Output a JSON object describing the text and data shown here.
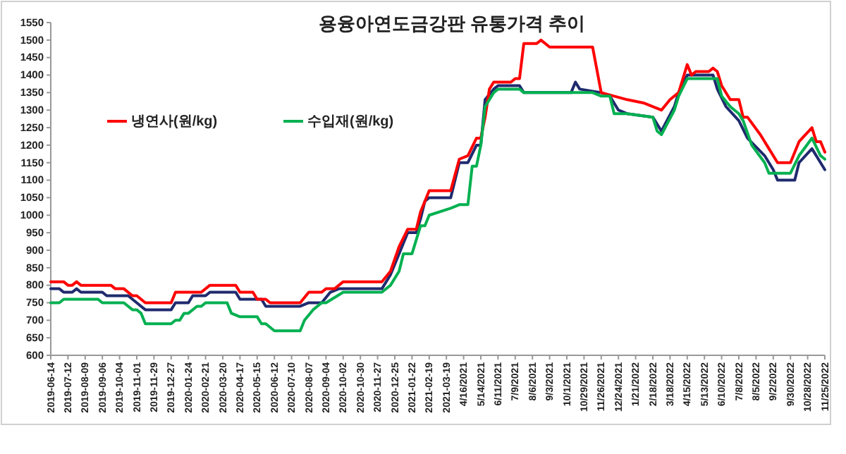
{
  "chart_data": {
    "type": "line",
    "title": "용융아연도금강판 유통가격 추이",
    "legend": "top left",
    "grid": false,
    "marker": "none",
    "line_style": "solid",
    "ylim": [
      600,
      1550
    ],
    "yticks": [
      600,
      650,
      700,
      750,
      800,
      850,
      900,
      950,
      1000,
      1050,
      1100,
      1150,
      1200,
      1250,
      1300,
      1350,
      1400,
      1450,
      1500,
      1550
    ],
    "xlim": [
      "2019-06-14",
      "2022-11-25"
    ],
    "xticks": [
      {
        "value": "2019-06-14",
        "label": "2019-06-14"
      },
      {
        "value": "2019-07-12",
        "label": "2019-07-12"
      },
      {
        "value": "2019-08-09",
        "label": "2019-08-09"
      },
      {
        "value": "2019-09-06",
        "label": "2019-09-06"
      },
      {
        "value": "2019-10-04",
        "label": "2019-10-04"
      },
      {
        "value": "2019-11-01",
        "label": "2019-11-01"
      },
      {
        "value": "2019-11-29",
        "label": "2019-11-29"
      },
      {
        "value": "2019-12-27",
        "label": "2019-12-27"
      },
      {
        "value": "2020-01-24",
        "label": "2020-01-24"
      },
      {
        "value": "2020-02-21",
        "label": "2020-02-21"
      },
      {
        "value": "2020-03-20",
        "label": "2020-03-20"
      },
      {
        "value": "2020-04-17",
        "label": "2020-04-17"
      },
      {
        "value": "2020-05-15",
        "label": "2020-05-15"
      },
      {
        "value": "2020-06-12",
        "label": "2020-06-12"
      },
      {
        "value": "2020-07-10",
        "label": "2020-07-10"
      },
      {
        "value": "2020-08-07",
        "label": "2020-08-07"
      },
      {
        "value": "2020-09-04",
        "label": "2020-09-04"
      },
      {
        "value": "2020-10-02",
        "label": "2020-10-02"
      },
      {
        "value": "2020-10-30",
        "label": "2020-10-30"
      },
      {
        "value": "2020-11-27",
        "label": "2020-11-27"
      },
      {
        "value": "2020-12-25",
        "label": "2020-12-25"
      },
      {
        "value": "2021-01-22",
        "label": "2021-01-22"
      },
      {
        "value": "2021-02-19",
        "label": "2021-02-19"
      },
      {
        "value": "2021-03-19",
        "label": "2021-03-19"
      },
      {
        "value": "2021-04-16",
        "label": "4/16/2021"
      },
      {
        "value": "2021-05-14",
        "label": "5/14/2021"
      },
      {
        "value": "2021-06-11",
        "label": "6/11/2021"
      },
      {
        "value": "2021-07-09",
        "label": "7/9/2021"
      },
      {
        "value": "2021-08-06",
        "label": "8/6/2021"
      },
      {
        "value": "2021-09-03",
        "label": "9/3/2021"
      },
      {
        "value": "2021-10-01",
        "label": "10/1/2021"
      },
      {
        "value": "2021-10-29",
        "label": "10/29/2021"
      },
      {
        "value": "2021-11-26",
        "label": "11/26/2021"
      },
      {
        "value": "2021-12-24",
        "label": "12/24/2021"
      },
      {
        "value": "2022-01-21",
        "label": "1/21/2022"
      },
      {
        "value": "2022-02-18",
        "label": "2/18/2022"
      },
      {
        "value": "2022-03-18",
        "label": "3/18/2022"
      },
      {
        "value": "2022-04-15",
        "label": "4/15/2022"
      },
      {
        "value": "2022-05-13",
        "label": "5/13/2022"
      },
      {
        "value": "2022-06-10",
        "label": "6/10/2022"
      },
      {
        "value": "2022-07-08",
        "label": "7/8/2022"
      },
      {
        "value": "2022-08-05",
        "label": "8/5/2022"
      },
      {
        "value": "2022-09-02",
        "label": "9/2/2022"
      },
      {
        "value": "2022-09-30",
        "label": "9/30/2022"
      },
      {
        "value": "2022-10-28",
        "label": "10/28/2022"
      },
      {
        "value": "2022-11-25",
        "label": "11/25/2022"
      }
    ],
    "series": [
      {
        "color": "#1f2a6e",
        "x": [
          "2019-06-14",
          "2019-06-28",
          "2019-07-05",
          "2019-07-19",
          "2019-07-26",
          "2019-08-02",
          "2019-09-06",
          "2019-09-13",
          "2019-10-18",
          "2019-11-01",
          "2019-11-08",
          "2019-11-15",
          "2019-12-27",
          "2020-01-03",
          "2020-01-24",
          "2020-01-31",
          "2020-02-21",
          "2020-02-28",
          "2020-04-10",
          "2020-04-17",
          "2020-05-22",
          "2020-05-29",
          "2020-07-24",
          "2020-08-07",
          "2020-08-28",
          "2020-09-11",
          "2020-09-25",
          "2020-12-04",
          "2020-12-18",
          "2021-01-01",
          "2021-01-15",
          "2021-01-29",
          "2021-02-05",
          "2021-02-12",
          "2021-02-19",
          "2021-03-26",
          "2021-04-09",
          "2021-04-23",
          "2021-05-07",
          "2021-05-14",
          "2021-05-21",
          "2021-06-04",
          "2021-06-11",
          "2021-07-16",
          "2021-07-23",
          "2021-10-08",
          "2021-10-15",
          "2021-10-22",
          "2021-11-26",
          "2021-12-10",
          "2021-12-24",
          "2022-01-07",
          "2022-02-18",
          "2022-03-04",
          "2022-03-25",
          "2022-04-01",
          "2022-04-15",
          "2022-05-27",
          "2022-06-03",
          "2022-06-17",
          "2022-07-08",
          "2022-07-22",
          "2022-08-19",
          "2022-09-02",
          "2022-09-09",
          "2022-10-07",
          "2022-10-14",
          "2022-11-04",
          "2022-11-18",
          "2022-11-25"
        ],
        "values": [
          790,
          790,
          780,
          780,
          790,
          780,
          780,
          770,
          770,
          750,
          740,
          730,
          730,
          750,
          750,
          770,
          770,
          780,
          780,
          760,
          760,
          740,
          740,
          750,
          750,
          780,
          790,
          790,
          830,
          890,
          950,
          950,
          990,
          1040,
          1050,
          1050,
          1150,
          1150,
          1200,
          1200,
          1330,
          1360,
          1370,
          1370,
          1350,
          1350,
          1380,
          1360,
          1350,
          1340,
          1300,
          1290,
          1280,
          1240,
          1310,
          1350,
          1400,
          1400,
          1360,
          1310,
          1270,
          1220,
          1170,
          1130,
          1100,
          1100,
          1150,
          1190,
          1150,
          1130
        ]
      },
      {
        "name": "냉연사(원/kg)",
        "color": "#ff0000",
        "x": [
          "2019-06-14",
          "2019-07-05",
          "2019-07-12",
          "2019-07-19",
          "2019-07-26",
          "2019-08-02",
          "2019-09-20",
          "2019-09-27",
          "2019-10-11",
          "2019-10-25",
          "2019-11-01",
          "2019-11-08",
          "2019-11-15",
          "2019-12-27",
          "2020-01-03",
          "2020-02-14",
          "2020-02-28",
          "2020-04-10",
          "2020-04-17",
          "2020-05-08",
          "2020-05-15",
          "2020-05-29",
          "2020-06-05",
          "2020-07-24",
          "2020-08-07",
          "2020-08-28",
          "2020-09-04",
          "2020-09-18",
          "2020-09-25",
          "2020-10-02",
          "2020-12-04",
          "2020-12-18",
          "2021-01-01",
          "2021-01-15",
          "2021-01-29",
          "2021-02-05",
          "2021-02-12",
          "2021-02-19",
          "2021-03-26",
          "2021-04-09",
          "2021-04-23",
          "2021-05-07",
          "2021-05-14",
          "2021-05-21",
          "2021-05-28",
          "2021-06-04",
          "2021-07-02",
          "2021-07-09",
          "2021-07-16",
          "2021-07-23",
          "2021-08-13",
          "2021-08-20",
          "2021-09-03",
          "2021-11-12",
          "2021-11-26",
          "2021-12-17",
          "2022-01-07",
          "2022-02-04",
          "2022-03-04",
          "2022-03-18",
          "2022-04-01",
          "2022-04-15",
          "2022-04-22",
          "2022-04-29",
          "2022-05-20",
          "2022-05-27",
          "2022-06-03",
          "2022-06-10",
          "2022-06-24",
          "2022-07-08",
          "2022-07-15",
          "2022-07-22",
          "2022-08-12",
          "2022-08-26",
          "2022-09-09",
          "2022-09-30",
          "2022-10-14",
          "2022-11-04",
          "2022-11-11",
          "2022-11-18",
          "2022-11-25"
        ],
        "values": [
          810,
          810,
          800,
          800,
          810,
          800,
          800,
          790,
          790,
          770,
          770,
          760,
          750,
          750,
          780,
          780,
          800,
          800,
          780,
          780,
          760,
          760,
          750,
          750,
          780,
          780,
          790,
          790,
          800,
          810,
          810,
          840,
          910,
          960,
          960,
          1010,
          1040,
          1070,
          1070,
          1160,
          1170,
          1220,
          1220,
          1280,
          1360,
          1380,
          1380,
          1390,
          1390,
          1490,
          1490,
          1500,
          1480,
          1480,
          1350,
          1340,
          1330,
          1320,
          1300,
          1330,
          1350,
          1430,
          1400,
          1410,
          1410,
          1420,
          1410,
          1370,
          1330,
          1330,
          1280,
          1280,
          1230,
          1190,
          1150,
          1150,
          1210,
          1250,
          1210,
          1210,
          1180
        ]
      },
      {
        "name": "수입재(원/kg)",
        "color": "#00b050",
        "x": [
          "2019-06-14",
          "2019-06-28",
          "2019-07-05",
          "2019-08-30",
          "2019-09-06",
          "2019-10-11",
          "2019-10-25",
          "2019-11-01",
          "2019-11-08",
          "2019-11-15",
          "2019-12-27",
          "2020-01-03",
          "2020-01-10",
          "2020-01-17",
          "2020-01-24",
          "2020-02-07",
          "2020-02-14",
          "2020-02-21",
          "2020-03-27",
          "2020-04-03",
          "2020-04-17",
          "2020-05-15",
          "2020-05-22",
          "2020-05-29",
          "2020-06-12",
          "2020-07-24",
          "2020-07-31",
          "2020-08-14",
          "2020-08-28",
          "2020-09-04",
          "2020-10-02",
          "2020-12-04",
          "2020-12-18",
          "2021-01-01",
          "2021-01-08",
          "2021-01-22",
          "2021-02-05",
          "2021-02-12",
          "2021-02-19",
          "2021-03-26",
          "2021-04-09",
          "2021-04-23",
          "2021-04-30",
          "2021-05-07",
          "2021-05-14",
          "2021-05-21",
          "2021-06-04",
          "2021-06-11",
          "2021-07-16",
          "2021-07-23",
          "2021-11-12",
          "2021-11-26",
          "2021-12-10",
          "2021-12-17",
          "2022-01-07",
          "2022-02-18",
          "2022-02-25",
          "2022-03-04",
          "2022-03-25",
          "2022-04-01",
          "2022-04-15",
          "2022-06-03",
          "2022-06-10",
          "2022-06-24",
          "2022-07-08",
          "2022-07-15",
          "2022-07-29",
          "2022-08-19",
          "2022-08-26",
          "2022-09-30",
          "2022-10-14",
          "2022-11-04",
          "2022-11-18",
          "2022-11-25"
        ],
        "values": [
          750,
          750,
          760,
          760,
          750,
          750,
          730,
          730,
          720,
          690,
          690,
          700,
          700,
          720,
          720,
          740,
          740,
          750,
          750,
          720,
          710,
          710,
          690,
          690,
          670,
          670,
          700,
          730,
          750,
          750,
          780,
          780,
          800,
          840,
          890,
          890,
          970,
          970,
          1000,
          1020,
          1030,
          1030,
          1140,
          1140,
          1200,
          1310,
          1350,
          1360,
          1360,
          1350,
          1350,
          1340,
          1340,
          1290,
          1290,
          1280,
          1240,
          1230,
          1300,
          1340,
          1390,
          1390,
          1340,
          1310,
          1290,
          1270,
          1200,
          1150,
          1120,
          1120,
          1170,
          1220,
          1170,
          1160
        ]
      }
    ]
  }
}
